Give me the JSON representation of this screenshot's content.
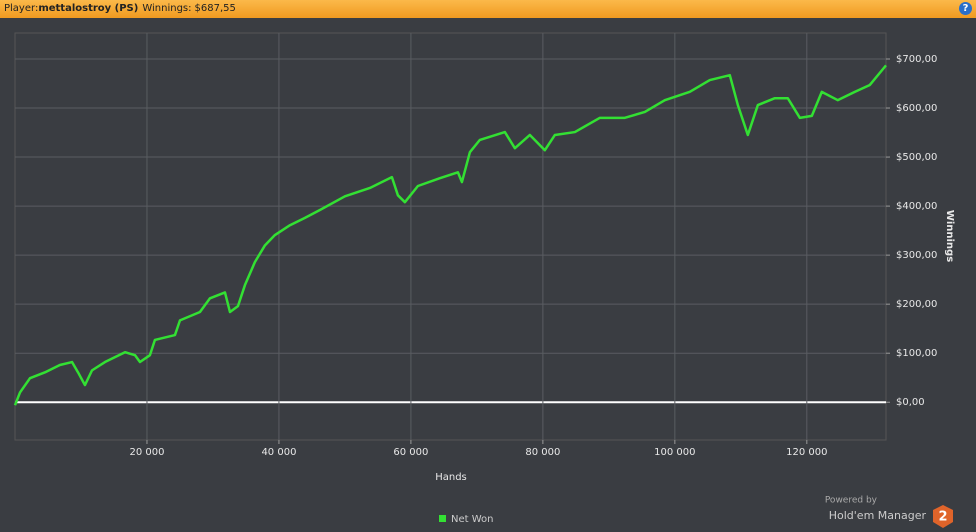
{
  "header": {
    "player_label": "Player:",
    "player": "mettalostroy (PS)",
    "winnings_label": "Winnings:",
    "winnings": "$687,55",
    "help": "?"
  },
  "branding": {
    "powered": "Powered by",
    "product": "Hold'em Manager",
    "logo": "2"
  },
  "chart_data": {
    "type": "line",
    "x_label": "Hands",
    "y_label": "Winnings",
    "series": [
      {
        "name": "Net Won",
        "color": "#33e033",
        "x": [
          0,
          760,
          2270,
          4545,
          6800,
          8640,
          9550,
          10600,
          11670,
          13640,
          16670,
          18180,
          18940,
          20450,
          21200,
          24240,
          25000,
          28030,
          29550,
          31820,
          32580,
          33790,
          34850,
          36360,
          37880,
          39390,
          41670,
          43940,
          46210,
          50000,
          53790,
          57120,
          58030,
          59090,
          61060,
          64390,
          67120,
          67730,
          68940,
          70450,
          74240,
          75760,
          78030,
          80300,
          81820,
          84850,
          88640,
          92420,
          95450,
          98480,
          102270,
          105300,
          108330,
          109550,
          111060,
          112580,
          115150,
          117120,
          118940,
          120760,
          122270,
          124700,
          127270,
          129550,
          132000
        ],
        "values": [
          -6,
          20,
          49,
          61,
          76,
          82,
          61,
          35,
          65,
          82,
          102,
          96,
          82,
          96,
          127,
          137,
          167,
          184,
          212,
          224,
          184,
          196,
          239,
          286,
          320,
          341,
          361,
          376,
          392,
          420,
          437,
          459,
          422,
          408,
          441,
          457,
          469,
          449,
          510,
          535,
          551,
          518,
          545,
          514,
          545,
          551,
          580,
          580,
          592,
          616,
          633,
          657,
          667,
          606,
          545,
          606,
          620,
          620,
          580,
          584,
          633,
          616,
          633,
          647,
          687
        ]
      }
    ],
    "xlim": [
      0,
      132000
    ],
    "xticks": [
      {
        "value": 20000,
        "label": "20 000"
      },
      {
        "value": 40000,
        "label": "40 000"
      },
      {
        "value": 60000,
        "label": "60 000"
      },
      {
        "value": 80000,
        "label": "80 000"
      },
      {
        "value": 100000,
        "label": "100 000"
      },
      {
        "value": 120000,
        "label": "120 000"
      }
    ],
    "ylim": [
      -77,
      753
    ],
    "yticks": [
      {
        "value": 0,
        "label": "$0,00"
      },
      {
        "value": 100,
        "label": "$100,00"
      },
      {
        "value": 200,
        "label": "$200,00"
      },
      {
        "value": 300,
        "label": "$300,00"
      },
      {
        "value": 400,
        "label": "$400,00"
      },
      {
        "value": 500,
        "label": "$500,00"
      },
      {
        "value": 600,
        "label": "$600,00"
      },
      {
        "value": 700,
        "label": "$700,00"
      }
    ],
    "grid": true,
    "zero_line_color": "#ffffff"
  }
}
